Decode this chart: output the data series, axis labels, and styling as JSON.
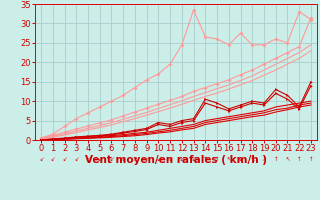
{
  "background_color": "#cceee8",
  "grid_color": "#aacccc",
  "xlabel": "Vent moyen/en rafales ( km/h )",
  "xlabel_color": "#cc0000",
  "xlabel_fontsize": 7.5,
  "tick_color": "#cc0000",
  "tick_fontsize": 6,
  "xlim": [
    -0.5,
    23.5
  ],
  "ylim": [
    0,
    35
  ],
  "yticks": [
    0,
    5,
    10,
    15,
    20,
    25,
    30,
    35
  ],
  "xticks": [
    0,
    1,
    2,
    3,
    4,
    5,
    6,
    7,
    8,
    9,
    10,
    11,
    12,
    13,
    14,
    15,
    16,
    17,
    18,
    19,
    20,
    21,
    22,
    23
  ],
  "x": [
    0,
    1,
    2,
    3,
    4,
    5,
    6,
    7,
    8,
    9,
    10,
    11,
    12,
    13,
    14,
    15,
    16,
    17,
    18,
    19,
    20,
    21,
    22,
    23
  ],
  "pink_jagged_y": [
    0.5,
    1.5,
    3.5,
    5.5,
    7.0,
    8.5,
    10.0,
    11.5,
    13.5,
    15.5,
    17.0,
    19.5,
    24.5,
    33.5,
    26.5,
    26.0,
    24.5,
    27.5,
    24.5,
    24.5,
    26.0,
    25.0,
    33.0,
    31.0
  ],
  "pink_linear1_y": [
    0.5,
    1.2,
    2.0,
    2.8,
    3.6,
    4.4,
    5.2,
    6.2,
    7.2,
    8.2,
    9.2,
    10.2,
    11.2,
    12.5,
    13.5,
    14.5,
    15.5,
    16.8,
    18.0,
    19.5,
    21.0,
    22.5,
    24.0,
    31.5
  ],
  "pink_linear2_y": [
    0.3,
    0.9,
    1.6,
    2.3,
    3.0,
    3.7,
    4.5,
    5.3,
    6.2,
    7.1,
    8.1,
    9.1,
    10.1,
    11.2,
    12.2,
    13.2,
    14.2,
    15.3,
    16.5,
    18.0,
    19.5,
    21.0,
    22.5,
    24.5
  ],
  "pink_linear3_y": [
    0.2,
    0.7,
    1.3,
    1.9,
    2.6,
    3.2,
    3.9,
    4.7,
    5.5,
    6.4,
    7.3,
    8.2,
    9.2,
    10.2,
    11.2,
    12.1,
    13.1,
    14.2,
    15.3,
    16.7,
    18.0,
    19.5,
    21.0,
    23.0
  ],
  "red_jagged1_y": [
    0.0,
    0.3,
    0.5,
    0.8,
    1.0,
    1.2,
    1.5,
    2.0,
    2.5,
    3.0,
    4.5,
    4.0,
    5.0,
    5.5,
    10.5,
    9.5,
    8.0,
    9.0,
    10.0,
    9.5,
    13.0,
    11.5,
    8.5,
    15.0
  ],
  "red_jagged2_y": [
    0.0,
    0.2,
    0.4,
    0.7,
    0.9,
    1.1,
    1.3,
    1.8,
    2.2,
    2.7,
    4.0,
    3.5,
    4.5,
    5.0,
    9.5,
    8.5,
    7.5,
    8.5,
    9.5,
    9.0,
    12.0,
    10.5,
    8.0,
    14.0
  ],
  "red_linear1_y": [
    0.0,
    0.15,
    0.35,
    0.55,
    0.7,
    0.9,
    1.1,
    1.4,
    1.7,
    2.0,
    2.5,
    3.0,
    3.5,
    4.0,
    5.0,
    5.5,
    6.0,
    6.5,
    7.0,
    7.5,
    8.5,
    9.0,
    9.5,
    10.0
  ],
  "red_linear2_y": [
    0.0,
    0.1,
    0.25,
    0.4,
    0.55,
    0.7,
    0.9,
    1.1,
    1.4,
    1.7,
    2.1,
    2.5,
    3.0,
    3.5,
    4.5,
    5.0,
    5.5,
    6.0,
    6.5,
    7.0,
    7.8,
    8.2,
    9.0,
    9.5
  ],
  "red_linear3_y": [
    0.0,
    0.08,
    0.18,
    0.3,
    0.42,
    0.55,
    0.7,
    0.9,
    1.1,
    1.4,
    1.8,
    2.1,
    2.6,
    3.0,
    4.0,
    4.5,
    5.0,
    5.5,
    6.0,
    6.4,
    7.2,
    7.8,
    8.5,
    9.0
  ],
  "pink_color": "#ff9999",
  "pink_jagged_color": "#ff9999",
  "red_color": "#dd0000",
  "red_jagged_color": "#cc0000",
  "ms": 2.0
}
